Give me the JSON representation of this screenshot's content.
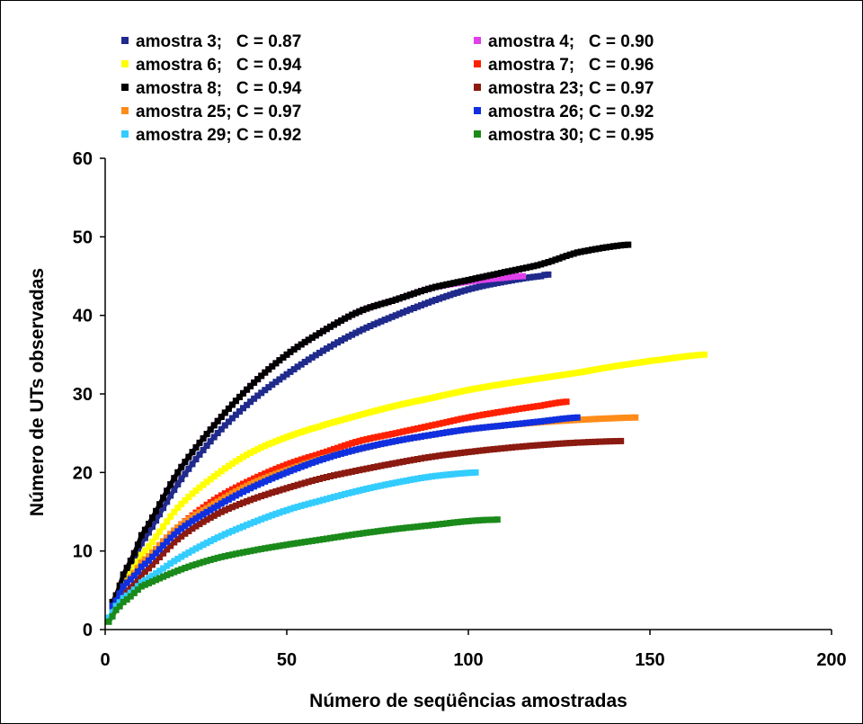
{
  "chart_data": {
    "type": "line",
    "title": "",
    "xlabel": "Número de seqüências amostradas",
    "ylabel": "Número de UTs observadas",
    "xlim": [
      0,
      200
    ],
    "ylim": [
      0,
      60
    ],
    "xticks": [
      0,
      50,
      100,
      150,
      200
    ],
    "yticks": [
      0,
      10,
      20,
      30,
      40,
      50,
      60
    ],
    "grid": false,
    "legend_position": "top",
    "series": [
      {
        "name": "amostra 3;   C = 0.87",
        "color": "#1f2a8c",
        "x": [
          2,
          5,
          10,
          20,
          30,
          40,
          50,
          60,
          70,
          80,
          90,
          100,
          110,
          120,
          122
        ],
        "y": [
          3,
          6,
          11,
          18.5,
          24.5,
          29,
          32.5,
          35.5,
          38,
          40,
          41.8,
          43.3,
          44.3,
          45,
          45.2
        ]
      },
      {
        "name": "amostra 4;   C = 0.90",
        "color": "#e040e8",
        "x": [
          2,
          5,
          10,
          20,
          30,
          40,
          50,
          60,
          70,
          80,
          90,
          100,
          110,
          115
        ],
        "y": [
          3.5,
          7,
          12,
          20,
          26,
          31,
          35,
          38,
          40.5,
          42,
          43.5,
          44.3,
          44.8,
          45
        ]
      },
      {
        "name": "amostra 6;   C = 0.94",
        "color": "#ffff00",
        "x": [
          2,
          5,
          10,
          20,
          30,
          40,
          50,
          60,
          70,
          80,
          90,
          100,
          110,
          120,
          130,
          140,
          150,
          165
        ],
        "y": [
          3,
          6,
          9.5,
          15.5,
          19.5,
          22.5,
          24.5,
          26,
          27.3,
          28.5,
          29.5,
          30.5,
          31.3,
          32,
          32.7,
          33.5,
          34.2,
          35
        ]
      },
      {
        "name": "amostra 7;   C = 0.96",
        "color": "#ff2000",
        "x": [
          2,
          5,
          10,
          20,
          30,
          40,
          50,
          60,
          70,
          80,
          90,
          100,
          110,
          120,
          127
        ],
        "y": [
          3,
          5.5,
          8.5,
          13,
          16.5,
          19,
          21,
          22.5,
          24,
          25,
          26,
          27,
          27.8,
          28.5,
          29
        ]
      },
      {
        "name": "amostra 8;   C = 0.94",
        "color": "#000000",
        "x": [
          2,
          5,
          10,
          20,
          30,
          40,
          50,
          60,
          70,
          80,
          90,
          100,
          110,
          120,
          130,
          144
        ],
        "y": [
          3.5,
          7,
          12,
          20,
          26,
          31,
          35,
          38,
          40.5,
          42,
          43.5,
          44.5,
          45.5,
          46.5,
          48,
          49
        ]
      },
      {
        "name": "amostra 23; C = 0.97",
        "color": "#8b1a10",
        "x": [
          2,
          5,
          10,
          20,
          30,
          40,
          50,
          60,
          70,
          80,
          90,
          100,
          110,
          120,
          130,
          142
        ],
        "y": [
          2.5,
          4.5,
          7,
          11.5,
          14.5,
          16.5,
          18,
          19.3,
          20.3,
          21.2,
          22,
          22.6,
          23.1,
          23.5,
          23.8,
          24
        ]
      },
      {
        "name": "amostra 25; C = 0.97",
        "color": "#ff8c1a",
        "x": [
          2,
          5,
          10,
          20,
          30,
          40,
          50,
          60,
          70,
          80,
          90,
          100,
          110,
          120,
          130,
          146
        ],
        "y": [
          3,
          5.5,
          8.5,
          13,
          16,
          18.5,
          20.3,
          21.8,
          23,
          24,
          24.8,
          25.5,
          26,
          26.4,
          26.7,
          27
        ]
      },
      {
        "name": "amostra 26; C = 0.92",
        "color": "#1030e0",
        "x": [
          2,
          5,
          10,
          20,
          30,
          40,
          50,
          60,
          70,
          80,
          90,
          100,
          110,
          120,
          130
        ],
        "y": [
          3,
          5.5,
          8,
          12.5,
          15.5,
          18,
          20,
          21.7,
          23,
          24,
          24.8,
          25.5,
          26,
          26.5,
          27
        ]
      },
      {
        "name": "amostra 29; C = 0.92",
        "color": "#33ccff",
        "x": [
          1,
          3,
          5,
          10,
          20,
          30,
          40,
          50,
          60,
          70,
          80,
          90,
          102
        ],
        "y": [
          1.5,
          3,
          4,
          6,
          9,
          11.5,
          13.5,
          15.2,
          16.5,
          17.7,
          18.7,
          19.5,
          20
        ]
      },
      {
        "name": "amostra 30; C = 0.95",
        "color": "#1a8a1a",
        "x": [
          1,
          3,
          5,
          10,
          20,
          30,
          40,
          50,
          60,
          70,
          80,
          90,
          100,
          108
        ],
        "y": [
          1,
          2.5,
          3.5,
          5.5,
          7.5,
          9,
          10,
          10.8,
          11.5,
          12.2,
          12.8,
          13.3,
          13.8,
          14
        ]
      }
    ]
  }
}
